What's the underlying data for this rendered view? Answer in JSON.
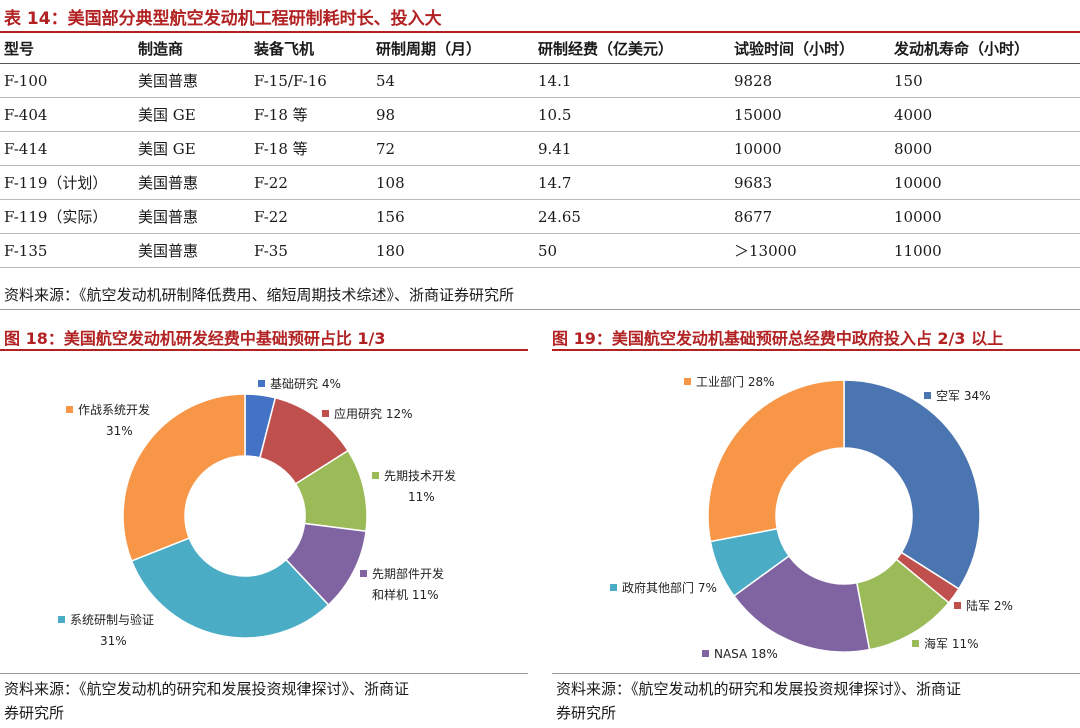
{
  "table": {
    "title": "表 14：美国部分典型航空发动机工程研制耗时长、投入大",
    "headers": [
      "型号",
      "制造商",
      "装备飞机",
      "研制周期（月）",
      "研制经费（亿美元）",
      "试验时间（小时）",
      "发动机寿命（小时）"
    ],
    "rows": [
      [
        "F-100",
        "美国普惠",
        "F-15/F-16",
        "54",
        "14.1",
        "9828",
        "150"
      ],
      [
        "F-404",
        "美国 GE",
        "F-18 等",
        "98",
        "10.5",
        "15000",
        "4000"
      ],
      [
        "F-414",
        "美国 GE",
        "F-18 等",
        "72",
        "9.41",
        "10000",
        "8000"
      ],
      [
        "F-119（计划）",
        "美国普惠",
        "F-22",
        "108",
        "14.7",
        "9683",
        "10000"
      ],
      [
        "F-119（实际）",
        "美国普惠",
        "F-22",
        "156",
        "24.65",
        "8677",
        "10000"
      ],
      [
        "F-135",
        "美国普惠",
        "F-35",
        "180",
        "50",
        "＞13000",
        "11000"
      ]
    ],
    "source": "资料来源：《航空发动机研制降低费用、缩短周期技术综述》、浙商证券研究所"
  },
  "chart_data": [
    {
      "type": "pie",
      "title": "图 18：美国航空发动机研发经费中基础预研占比 1/3",
      "labels": [
        "基础研究",
        "应用研究",
        "先期技术开发",
        "先期部件开发和样机",
        "系统研制与验证",
        "作战系统开发"
      ],
      "values": [
        4,
        12,
        11,
        11,
        31,
        31
      ],
      "value_labels": [
        "4%",
        "12%",
        "11%",
        "11%",
        "31%",
        "31%"
      ],
      "colors": [
        "#4472c4",
        "#c0504d",
        "#9bbb59",
        "#8064a2",
        "#4bacc6",
        "#f79646"
      ],
      "legend": "callouts",
      "source_line1": "资料来源：《航空发动机的研究和发展投资规律探讨》、浙商证",
      "source_line2": "券研究所"
    },
    {
      "type": "pie",
      "title": "图 19：美国航空发动机基础预研总经费中政府投入占 2/3 以上",
      "labels": [
        "空军",
        "陆军",
        "海军",
        "NASA",
        "政府其他部门",
        "工业部门"
      ],
      "values": [
        34,
        2,
        11,
        18,
        7,
        28
      ],
      "value_labels": [
        "34%",
        "2%",
        "11%",
        "18%",
        "7%",
        "28%"
      ],
      "colors": [
        "#4a75b0",
        "#c0504d",
        "#9bbb59",
        "#8064a2",
        "#4bacc6",
        "#f79646"
      ],
      "legend": "callouts",
      "source_line1": "资料来源：《航空发动机的研究和发展投资规律探讨》、浙商证",
      "source_line2": "券研究所"
    }
  ]
}
